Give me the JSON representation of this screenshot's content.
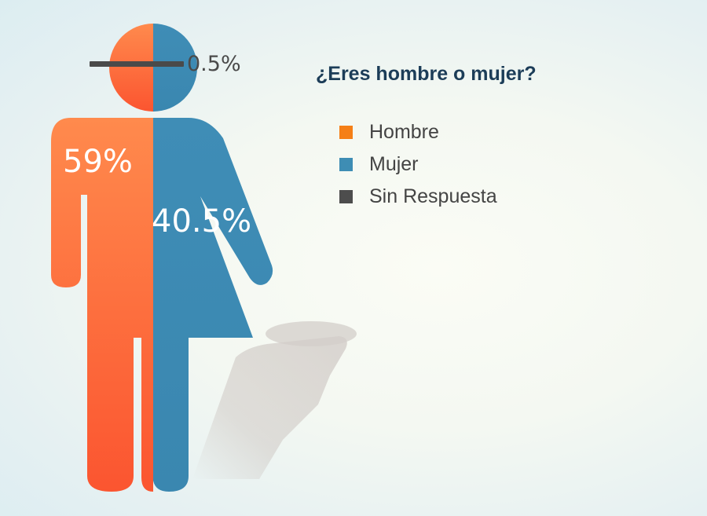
{
  "chart_data": {
    "type": "pie",
    "title": "¿Eres hombre o mujer?",
    "series": [
      {
        "name": "Hombre",
        "value": 59,
        "label": "59%",
        "color": "#f57f17"
      },
      {
        "name": "Mujer",
        "value": 40.5,
        "label": "40.5%",
        "color": "#3e8db4"
      },
      {
        "name": "Sin Respuesta",
        "value": 0.5,
        "label": "0.5%",
        "color": "#4d4d4d"
      }
    ],
    "legend_position": "right",
    "visual": "person-icon"
  },
  "colors": {
    "men_top": "#ff8a4d",
    "men_bottom": "#fb5530",
    "women_top": "#3f8db6",
    "women_bottom": "#3a87b0",
    "no_answer_bar": "#4a4a4a",
    "title": "#1c3d58",
    "legend_text": "#444444"
  }
}
